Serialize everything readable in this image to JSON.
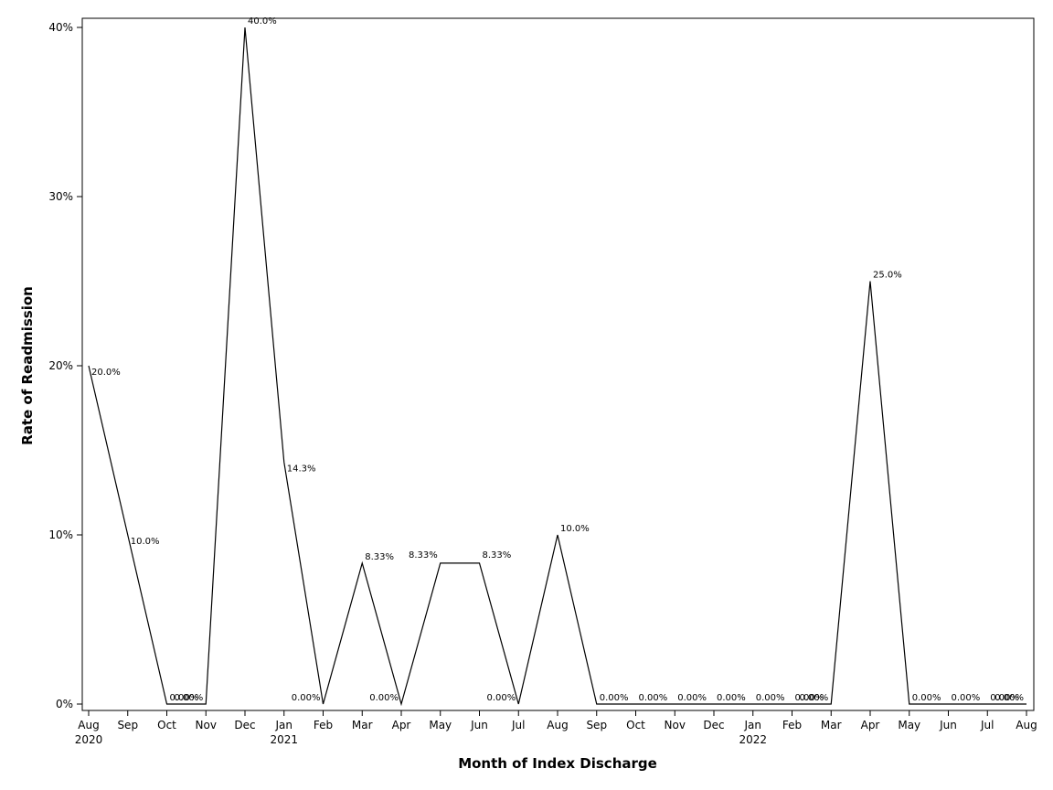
{
  "chart_data": {
    "type": "line",
    "xlabel": "Month of Index Discharge",
    "ylabel": "Rate of Readmission",
    "ylim": [
      0,
      40
    ],
    "y_ticks": [
      {
        "value": 0,
        "label": "0%"
      },
      {
        "value": 10,
        "label": "10%"
      },
      {
        "value": 20,
        "label": "20%"
      },
      {
        "value": 30,
        "label": "30%"
      },
      {
        "value": 40,
        "label": "40%"
      }
    ],
    "grid": false,
    "legend": "none",
    "line_color": "#000000",
    "points": [
      {
        "month": "Aug",
        "year": "2020",
        "value": 20.0,
        "label": "20.0%"
      },
      {
        "month": "Sep",
        "year": "",
        "value": 10.0,
        "label": "10.0%"
      },
      {
        "month": "Oct",
        "year": "",
        "value": 0,
        "label": "0.00%"
      },
      {
        "month": "Nov",
        "year": "",
        "value": 0,
        "label": "0.00%"
      },
      {
        "month": "Dec",
        "year": "",
        "value": 40.0,
        "label": "40.0%"
      },
      {
        "month": "Jan",
        "year": "2021",
        "value": 14.3,
        "label": "14.3%"
      },
      {
        "month": "Feb",
        "year": "",
        "value": 0,
        "label": "0.00%"
      },
      {
        "month": "Mar",
        "year": "",
        "value": 8.33,
        "label": "8.33%"
      },
      {
        "month": "Apr",
        "year": "",
        "value": 0,
        "label": "0.00%"
      },
      {
        "month": "May",
        "year": "",
        "value": 8.33,
        "label": "8.33%"
      },
      {
        "month": "Jun",
        "year": "",
        "value": 8.33,
        "label": "8.33%"
      },
      {
        "month": "Jul",
        "year": "",
        "value": 0,
        "label": "0.00%"
      },
      {
        "month": "Aug",
        "year": "",
        "value": 10.0,
        "label": "10.0%"
      },
      {
        "month": "Sep",
        "year": "",
        "value": 0,
        "label": "0.00%"
      },
      {
        "month": "Oct",
        "year": "",
        "value": 0,
        "label": "0.00%"
      },
      {
        "month": "Nov",
        "year": "",
        "value": 0,
        "label": "0.00%"
      },
      {
        "month": "Dec",
        "year": "",
        "value": 0,
        "label": "0.00%"
      },
      {
        "month": "Jan",
        "year": "2022",
        "value": 0,
        "label": "0.00%"
      },
      {
        "month": "Feb",
        "year": "",
        "value": 0,
        "label": "0.00%"
      },
      {
        "month": "Mar",
        "year": "",
        "value": 0,
        "label": "0.00%"
      },
      {
        "month": "Apr",
        "year": "",
        "value": 25.0,
        "label": "25.0%"
      },
      {
        "month": "May",
        "year": "",
        "value": 0,
        "label": "0.00%"
      },
      {
        "month": "Jun",
        "year": "",
        "value": 0,
        "label": "0.00%"
      },
      {
        "month": "Jul",
        "year": "",
        "value": 0,
        "label": "0.00%"
      },
      {
        "month": "Aug",
        "year": "",
        "value": 0,
        "label": "0.00%"
      }
    ]
  }
}
